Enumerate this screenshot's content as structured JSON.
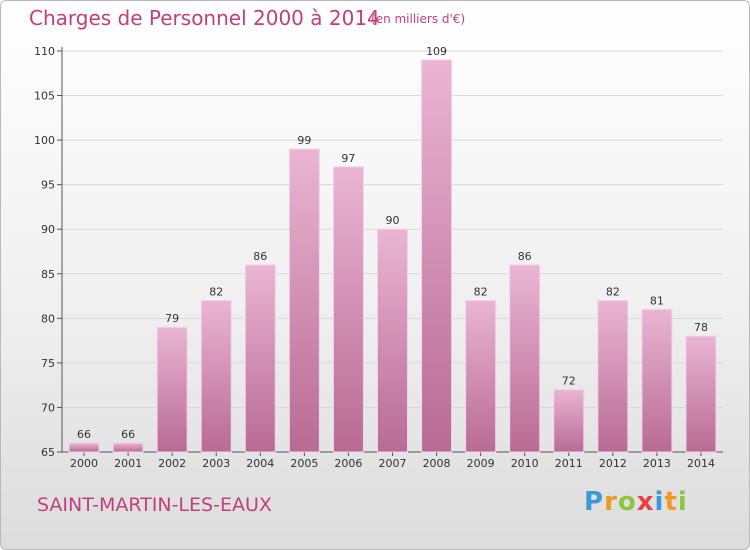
{
  "header": {
    "title": "Charges de Personnel 2000 à 2014",
    "subtitle": "(en milliers d'€)"
  },
  "footer": {
    "commune": "SAINT-MARTIN-LES-EAUX",
    "brand": {
      "letters": [
        "P",
        "r",
        "o",
        "x",
        "i",
        "t",
        "i"
      ],
      "colors": [
        "#3a9ad9",
        "#f29a1f",
        "#8cc63f",
        "#e8423f",
        "#3a9ad9",
        "#f29a1f",
        "#8cc63f"
      ]
    }
  },
  "colors": {
    "bar_light": "#eab5d3",
    "bar_dark": "#b86b93",
    "accent_text": "#c2407a",
    "grid": "#d8d8d8"
  },
  "chart_data": {
    "type": "bar",
    "title": "Charges de Personnel 2000 à 2014",
    "subtitle": "(en milliers d'€)",
    "categories": [
      "2000",
      "2001",
      "2002",
      "2003",
      "2004",
      "2005",
      "2006",
      "2007",
      "2008",
      "2009",
      "2010",
      "2011",
      "2012",
      "2013",
      "2014"
    ],
    "values": [
      66,
      66,
      79,
      82,
      86,
      99,
      97,
      90,
      109,
      82,
      86,
      72,
      82,
      81,
      78
    ],
    "ylim": [
      65,
      110
    ],
    "yticks": [
      65,
      70,
      75,
      80,
      85,
      90,
      95,
      100,
      105,
      110
    ],
    "grid": true,
    "data_labels": true,
    "legend": "none"
  }
}
